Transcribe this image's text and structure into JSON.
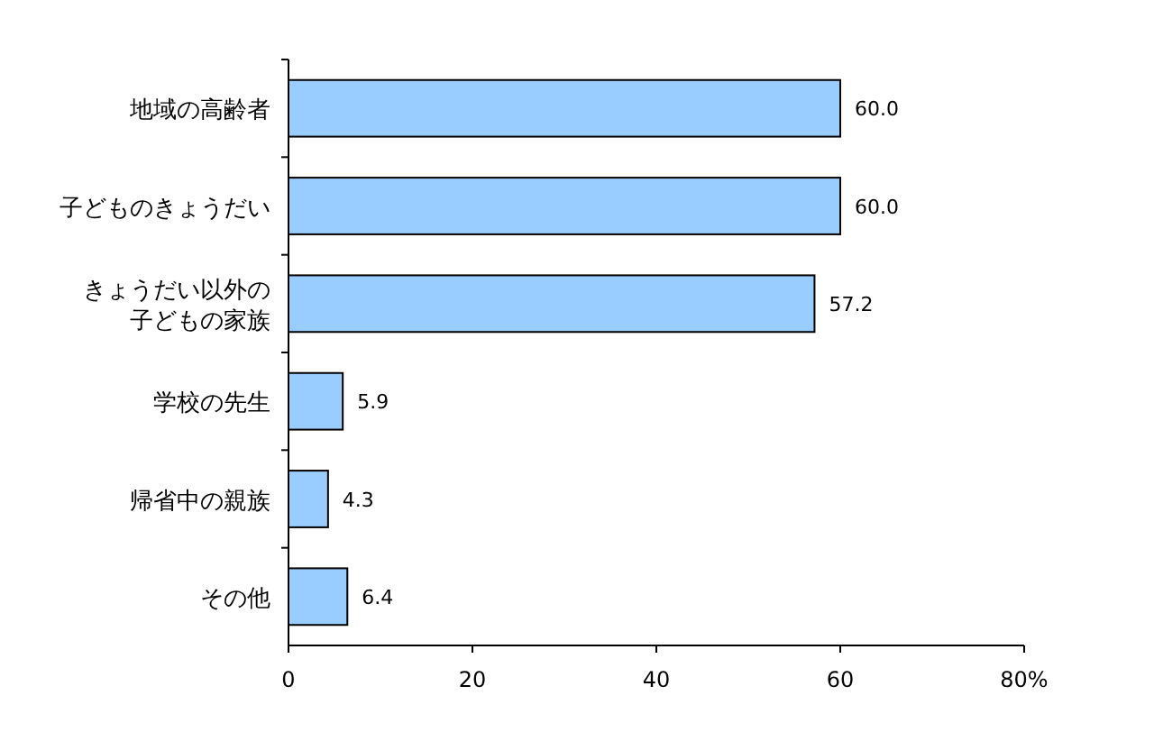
{
  "chart_data": {
    "type": "bar",
    "orientation": "horizontal",
    "categories": [
      "地域の高齢者",
      "子どものきょうだい",
      "きょうだい以外の子どもの家族",
      "学校の先生",
      "帰省中の親族",
      "その他"
    ],
    "values": [
      60.0,
      60.0,
      57.2,
      5.9,
      4.3,
      6.4
    ],
    "value_labels": [
      "60.0",
      "60.0",
      "57.2",
      "5.9",
      "4.3",
      "6.4"
    ],
    "color": "#99ccff",
    "xlim": [
      0,
      80
    ],
    "xticks": [
      0,
      20,
      40,
      60,
      {
        "value": 80,
        "label": "80%"
      }
    ]
  }
}
